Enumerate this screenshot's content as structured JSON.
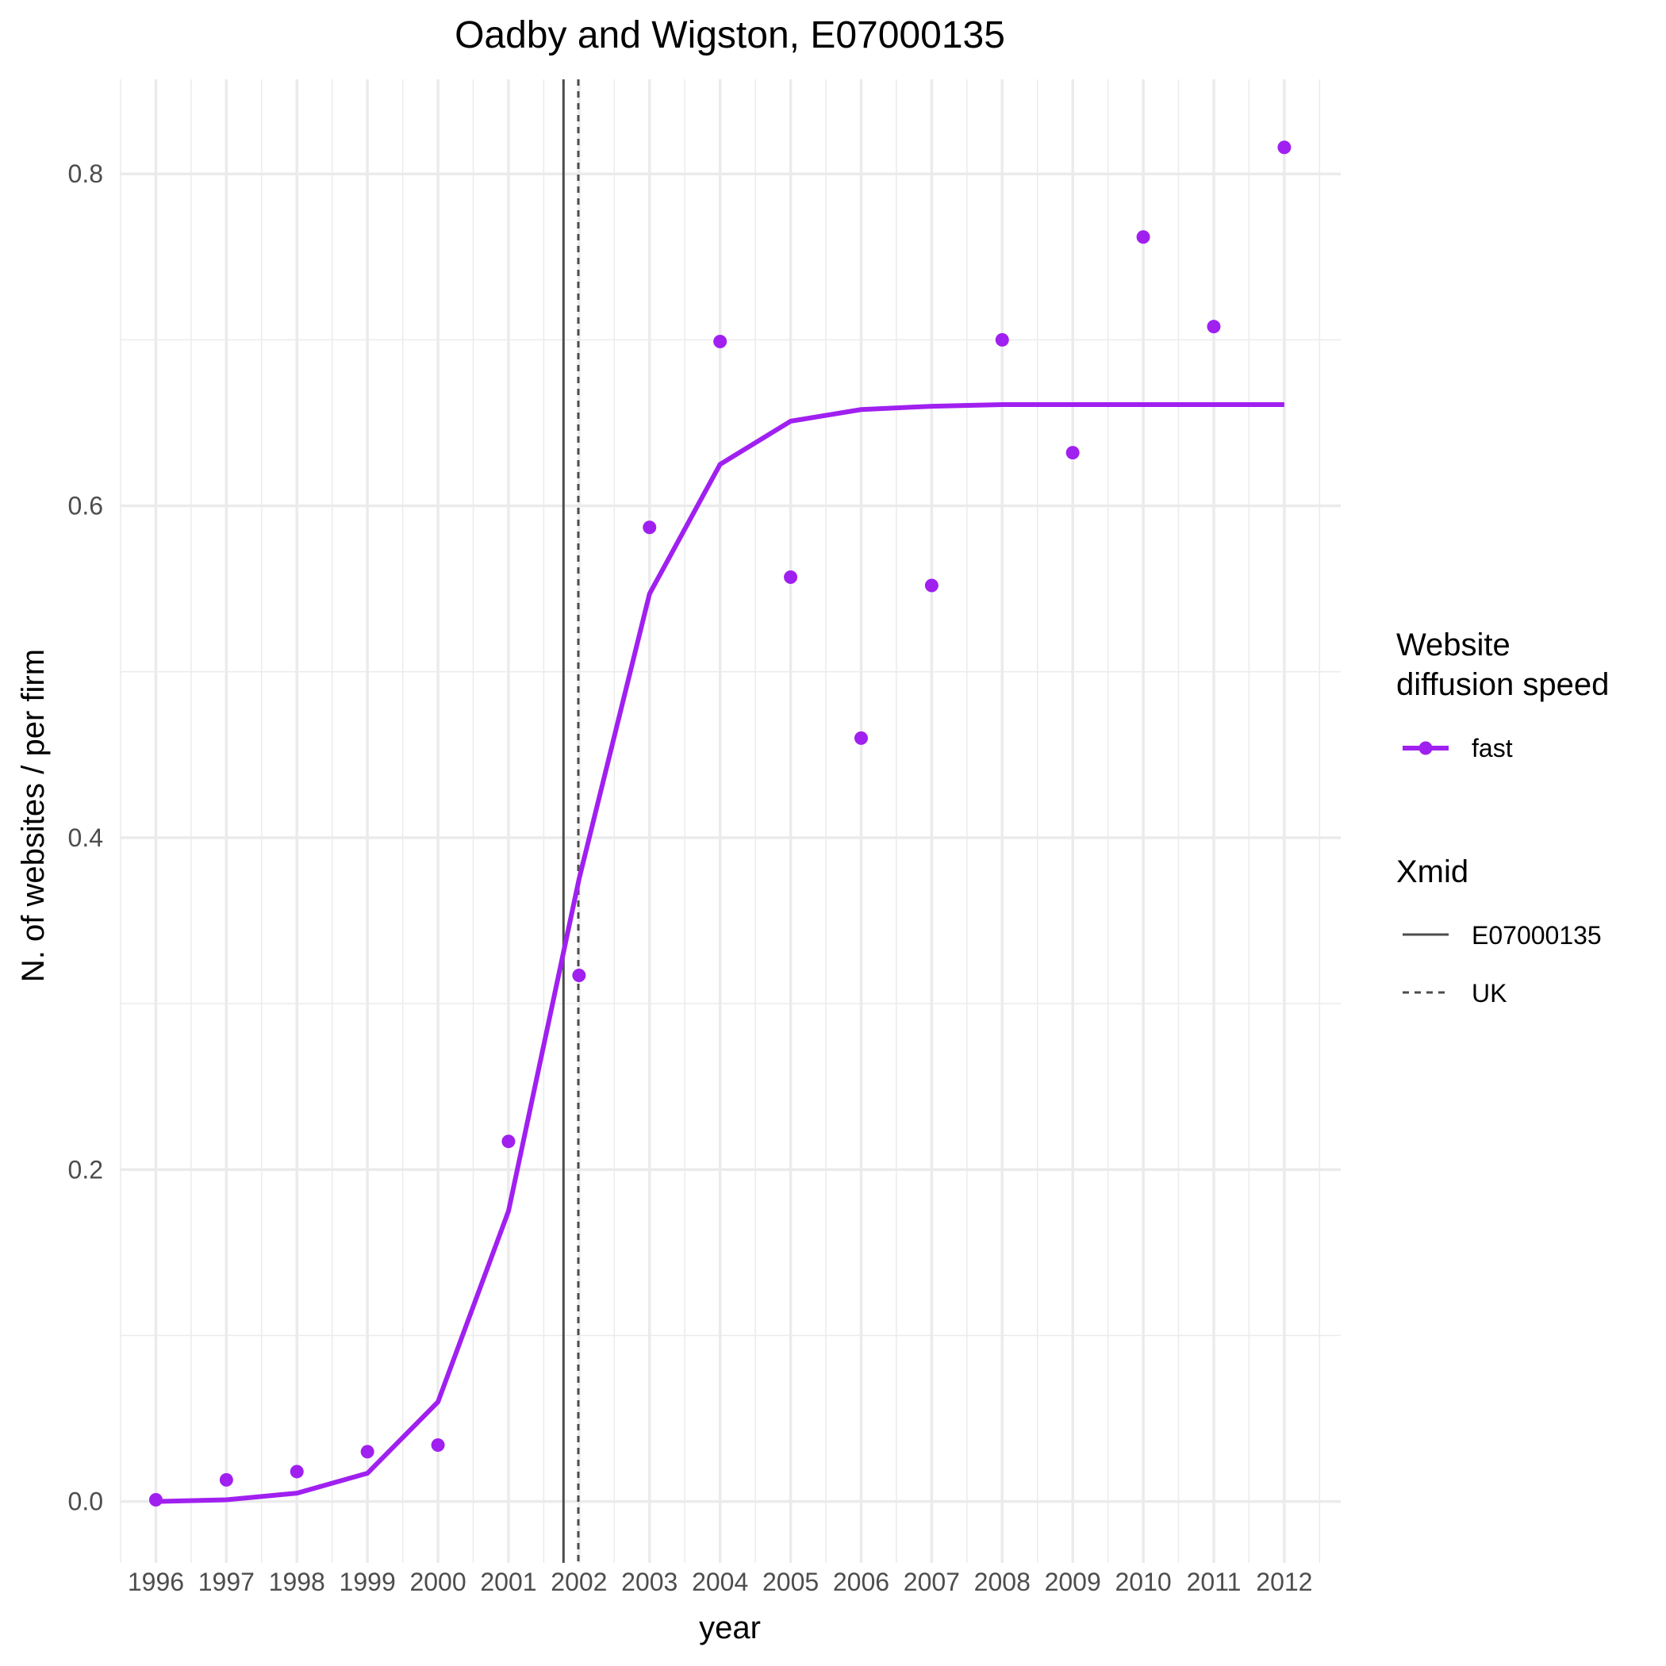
{
  "chart_data": {
    "type": "scatter",
    "title": "Oadby and Wigston, E07000135",
    "xlabel": "year",
    "ylabel": "N. of websites / per firm",
    "x": [
      1996,
      1997,
      1998,
      1999,
      2000,
      2001,
      2002,
      2003,
      2004,
      2005,
      2006,
      2007,
      2008,
      2009,
      2010,
      2011,
      2012
    ],
    "x_tick_labels": [
      "1996",
      "1997",
      "1998",
      "1999",
      "2000",
      "2001",
      "2002",
      "2003",
      "2004",
      "2005",
      "2006",
      "2007",
      "2008",
      "2009",
      "2010",
      "2011",
      "2012"
    ],
    "y_ticks": [
      0.0,
      0.2,
      0.4,
      0.6,
      0.8
    ],
    "y_tick_labels": [
      "0.0",
      "0.2",
      "0.4",
      "0.6",
      "0.8"
    ],
    "xlim": [
      1995.5,
      2012.8
    ],
    "ylim": [
      -0.037,
      0.857
    ],
    "grid": true,
    "legend_position": "right",
    "series": [
      {
        "name": "fast",
        "kind": "points",
        "color": "#a020f0",
        "values": [
          0.001,
          0.013,
          0.018,
          0.03,
          0.034,
          0.217,
          0.317,
          0.587,
          0.699,
          0.557,
          0.46,
          0.552,
          0.7,
          0.632,
          0.762,
          0.708,
          0.816
        ]
      },
      {
        "name": "fast",
        "kind": "fitted-line",
        "color": "#a020f0",
        "values": [
          0.0,
          0.001,
          0.005,
          0.017,
          0.06,
          0.175,
          0.375,
          0.547,
          0.625,
          0.651,
          0.658,
          0.66,
          0.661,
          0.661,
          0.661,
          0.661,
          0.661
        ]
      }
    ],
    "vlines": [
      {
        "name": "E07000135",
        "x": 2001.78,
        "style": "solid",
        "color": "#4d4d4d"
      },
      {
        "name": "UK",
        "x": 2001.99,
        "style": "dashed",
        "color": "#4d4d4d"
      }
    ],
    "legends": [
      {
        "title_lines": [
          "Website",
          "diffusion speed"
        ],
        "items": [
          {
            "label": "fast",
            "color": "#a020f0",
            "style": "line-point"
          }
        ]
      },
      {
        "title_lines": [
          "Xmid"
        ],
        "items": [
          {
            "label": "E07000135",
            "style": "solid"
          },
          {
            "label": "UK",
            "style": "dashed"
          }
        ]
      }
    ]
  }
}
